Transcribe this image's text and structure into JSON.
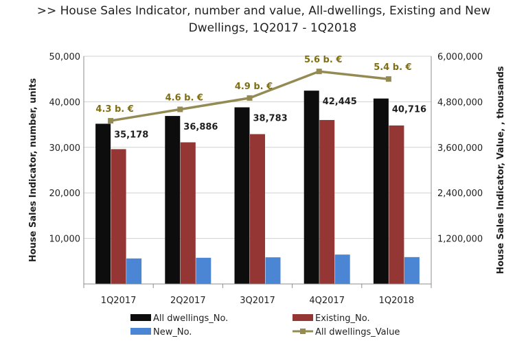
{
  "chart_data": {
    "type": "bar",
    "title_line1": ">> House Sales Indicator, number and value, All-dwellings, Existing and New",
    "title_line2": "Dwellings, 1Q2017 - 1Q2018",
    "categories": [
      "1Q2017",
      "2Q2017",
      "3Q2017",
      "4Q2017",
      "1Q2018"
    ],
    "ylabel": "House Sales Indicator, number, units",
    "y2label": "House Sales  Indicator, Value, , thousands",
    "ylim": [
      0,
      50000
    ],
    "y2lim": [
      0,
      6000000
    ],
    "yticks": [
      "10,000",
      "20,000",
      "30,000",
      "40,000",
      "50,000"
    ],
    "y2ticks": [
      "1,200,000",
      "2,400,000",
      "3,600,000",
      "4,800,000",
      "6,000,000"
    ],
    "grid": "horizontal",
    "legend_position": "bottom",
    "series": [
      {
        "name": "All dwellings_No.",
        "type": "bar",
        "axis": "left",
        "color": "#0d0d0d",
        "values": [
          35178,
          36886,
          38783,
          42445,
          40716
        ],
        "labels": [
          "35,178",
          "36,886",
          "38,783",
          "42,445",
          "40,716"
        ]
      },
      {
        "name": "Existing_No.",
        "type": "bar",
        "axis": "left",
        "color": "#943634",
        "values": [
          29600,
          31100,
          32900,
          36000,
          34800
        ]
      },
      {
        "name": "New_No.",
        "type": "bar",
        "axis": "left",
        "color": "#4a86d4",
        "values": [
          5600,
          5750,
          5850,
          6450,
          5900
        ]
      },
      {
        "name": "All dwellings_Value",
        "type": "line",
        "axis": "right",
        "color": "#948a54",
        "values": [
          4300000,
          4600000,
          4900000,
          5600000,
          5400000
        ],
        "labels": [
          "4.3 b. €",
          "4.6 b. €",
          "4.9 b. €",
          "5.6 b. €",
          "5.4 b. €"
        ]
      }
    ]
  }
}
